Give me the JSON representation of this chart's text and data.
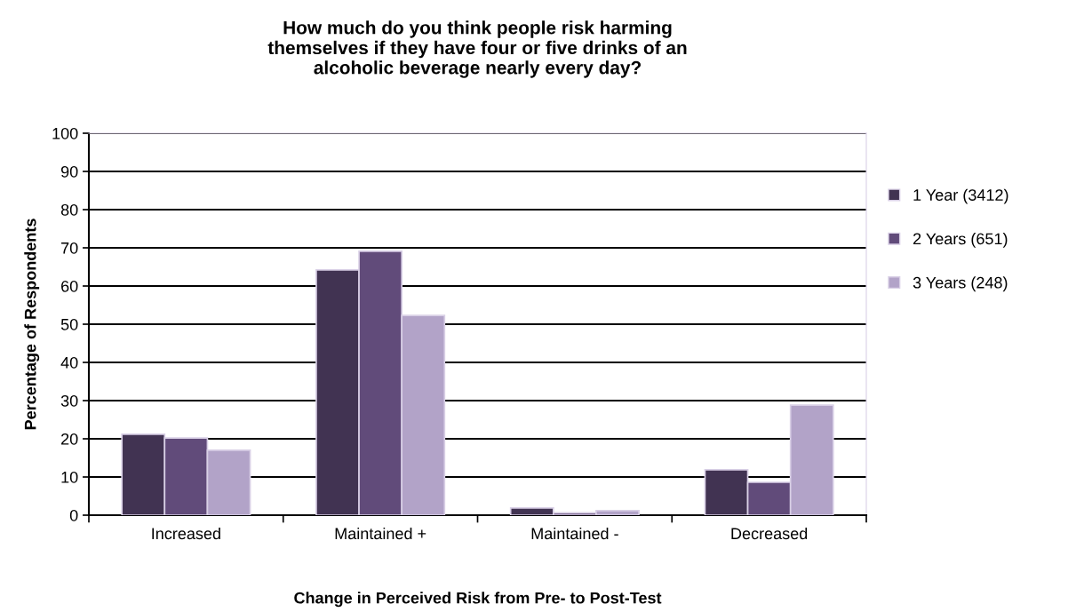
{
  "chart_data": {
    "type": "bar",
    "title": "How much do you think people risk harming\nthemselves if they have four or five drinks of an\nalcoholic beverage nearly every day?",
    "xlabel": "Change in Perceived Risk from Pre- to Post-Test",
    "ylabel": "Percentage of Respondents",
    "categories": [
      "Increased",
      "Maintained +",
      "Maintained -",
      "Decreased"
    ],
    "series": [
      {
        "name": "1 Year (3412)",
        "color": "#413352",
        "values": [
          21.2,
          64.2,
          1.9,
          11.9
        ]
      },
      {
        "name": "2 Years (651)",
        "color": "#614b7a",
        "values": [
          20.2,
          69.1,
          0.6,
          8.6
        ]
      },
      {
        "name": "3 Years (248)",
        "color": "#b2a3c8",
        "values": [
          17.0,
          52.3,
          1.2,
          28.8
        ]
      }
    ],
    "ylim": [
      0,
      100
    ],
    "yticks": [
      0,
      10,
      20,
      30,
      40,
      50,
      60,
      70,
      80,
      90,
      100
    ],
    "grid": "y",
    "legend": "right"
  }
}
